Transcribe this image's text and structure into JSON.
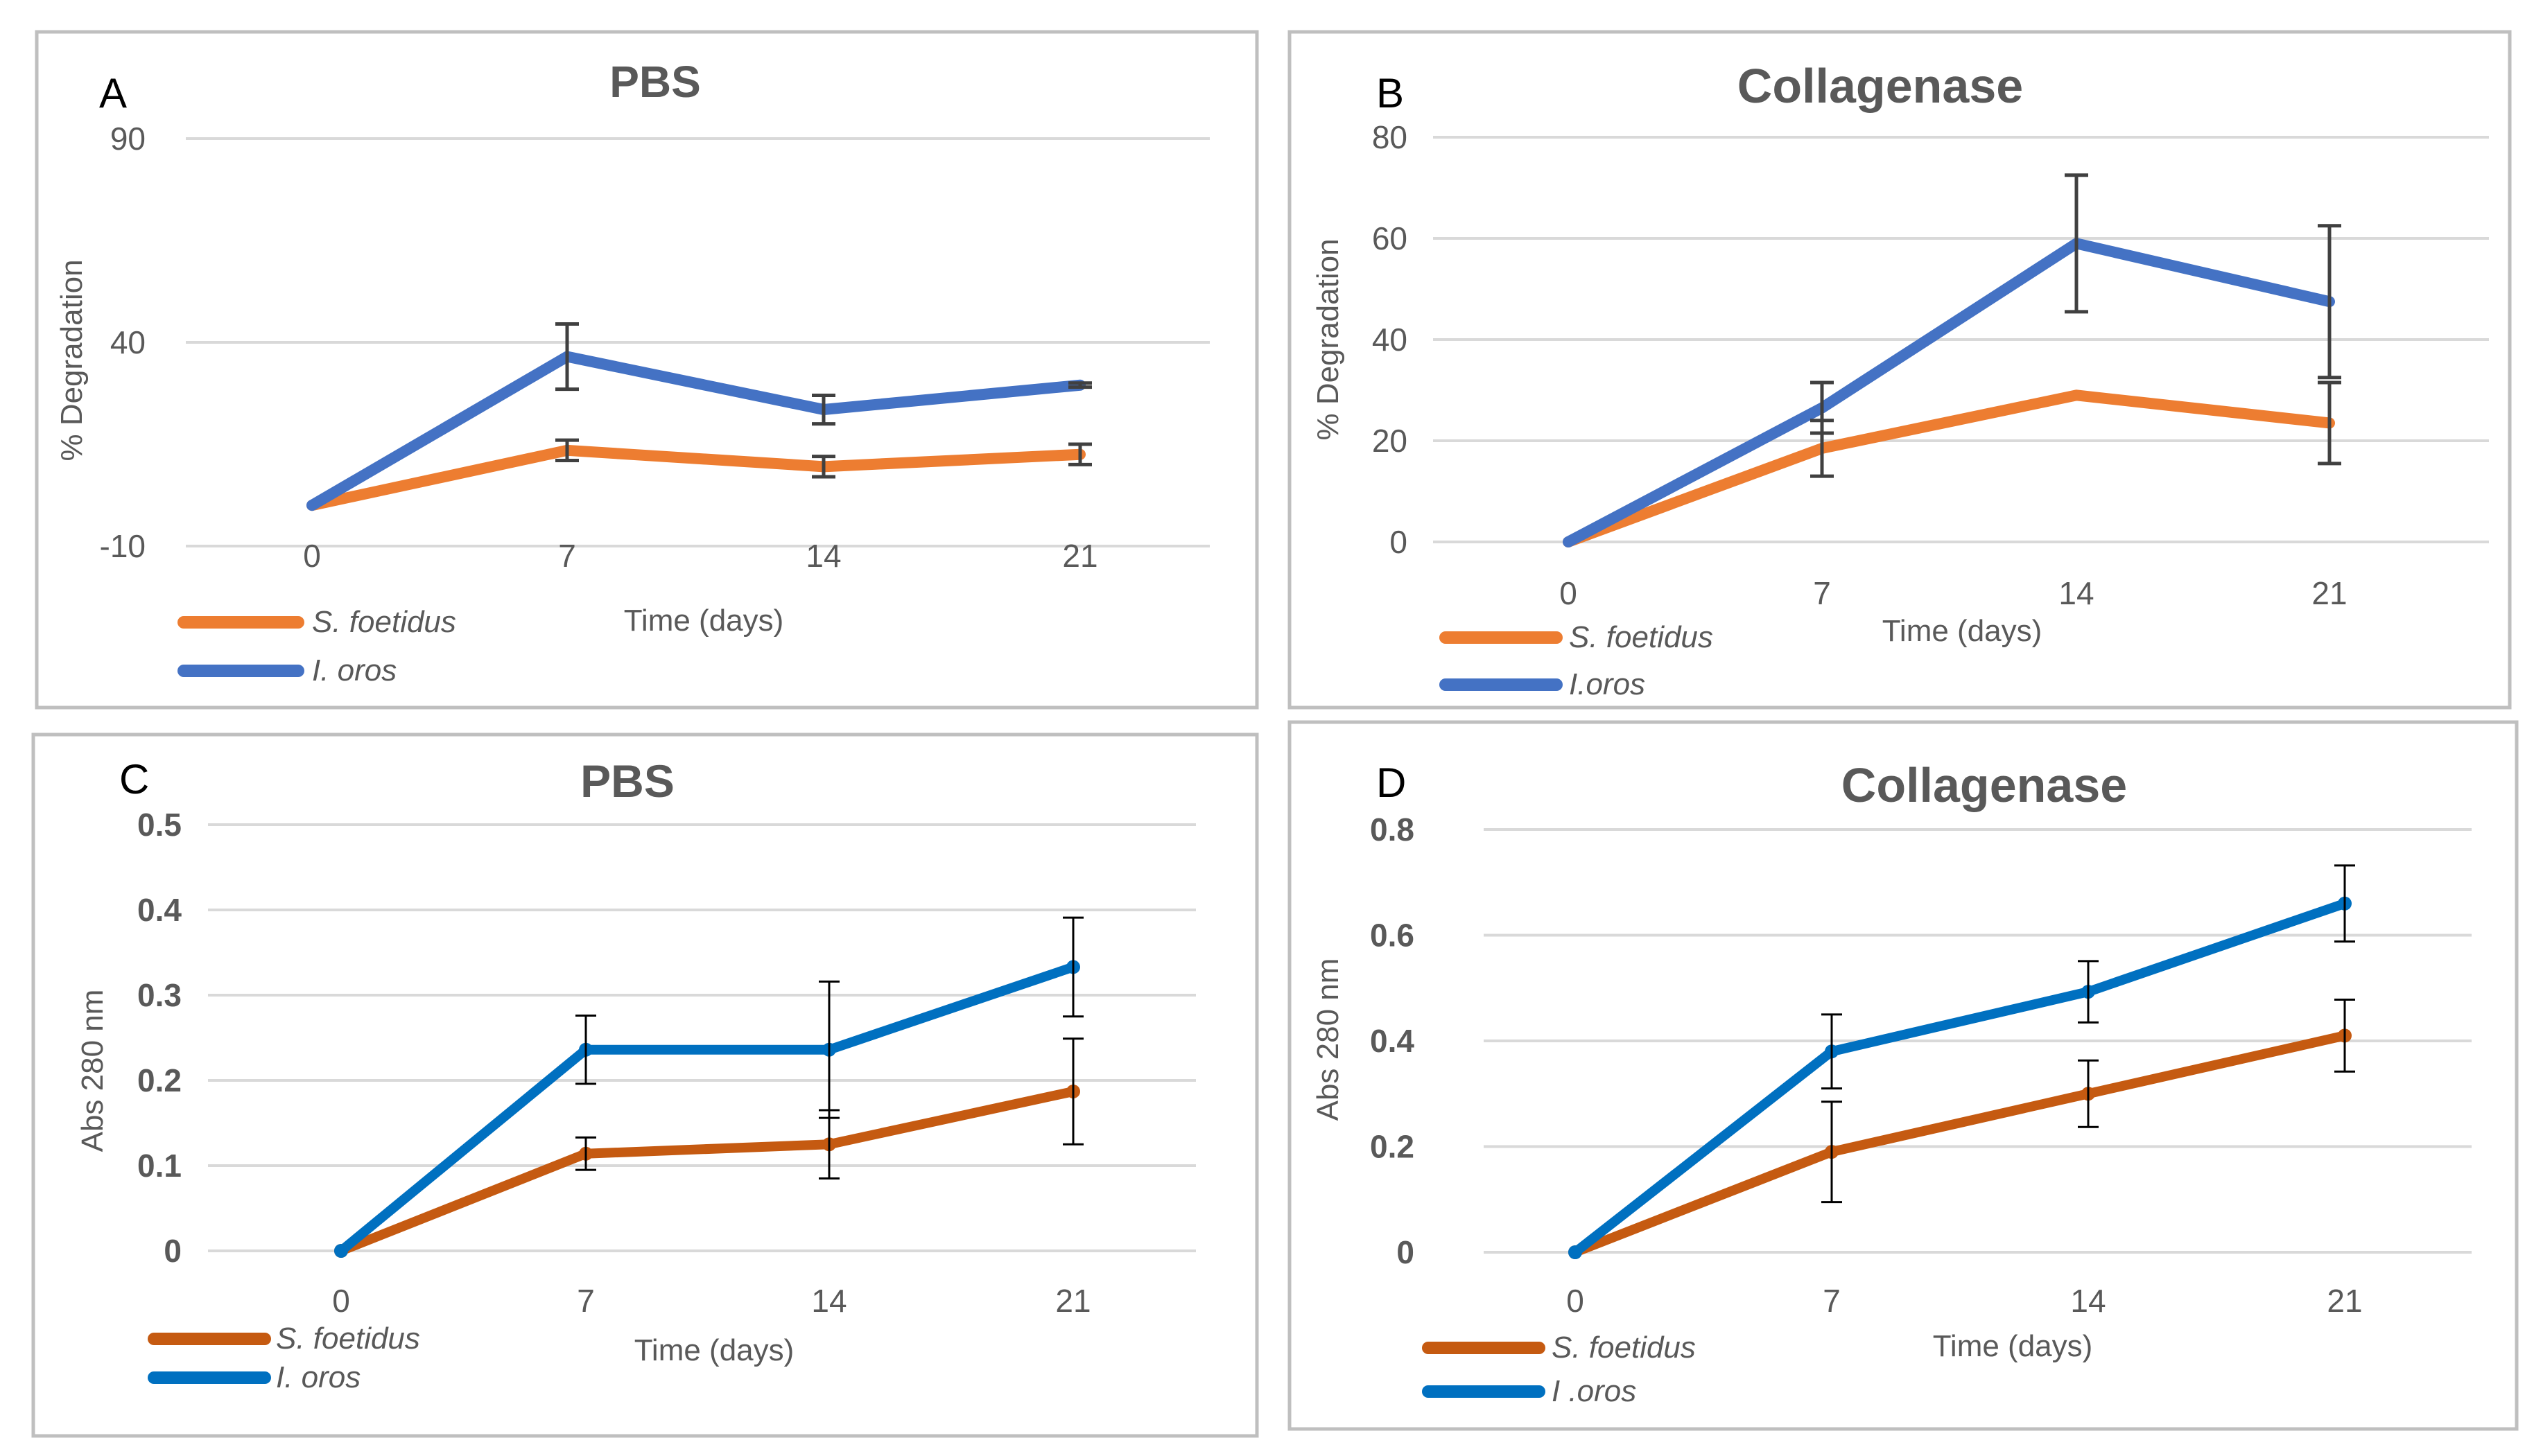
{
  "chart_data": [
    {
      "id": "A",
      "type": "line",
      "panel_label": "A",
      "title": "PBS",
      "xlabel": "Time (days)",
      "ylabel": "% Degradation",
      "categories": [
        "0",
        "7",
        "14",
        "21"
      ],
      "yticks": [
        -10,
        40,
        90
      ],
      "ylim": [
        -10,
        90
      ],
      "grid": true,
      "legend_position": "bottom-left",
      "series": [
        {
          "name": "S. foetidus",
          "color": "#ed7d31",
          "values": [
            0,
            13.5,
            9.5,
            12.5
          ],
          "errors": [
            0,
            2.5,
            2.5,
            2.5
          ]
        },
        {
          "name": "I. oros",
          "color": "#4472c4",
          "values": [
            0,
            36.5,
            23.5,
            29.5
          ],
          "errors": [
            0,
            8,
            3.5,
            0.5
          ]
        }
      ]
    },
    {
      "id": "B",
      "type": "line",
      "panel_label": "B",
      "title": "Collagenase",
      "xlabel": "Time (days)",
      "ylabel": "% Degradation",
      "categories": [
        "0",
        "7",
        "14",
        "21"
      ],
      "yticks": [
        0,
        20,
        40,
        60,
        80
      ],
      "ylim": [
        0,
        80
      ],
      "grid": true,
      "legend_position": "bottom-left",
      "series": [
        {
          "name": "S. foetidus",
          "color": "#ed7d31",
          "values": [
            0,
            18.5,
            29,
            23.5
          ],
          "errors": [
            0,
            5.5,
            0,
            8
          ]
        },
        {
          "name": "I.oros",
          "color": "#4472c4",
          "values": [
            0,
            26.5,
            59,
            47.5
          ],
          "errors": [
            0,
            5,
            13.5,
            15
          ]
        }
      ]
    },
    {
      "id": "C",
      "type": "line",
      "panel_label": "C",
      "title": "PBS",
      "xlabel": "Time (days)",
      "ylabel": "Abs 280 nm",
      "categories": [
        "0",
        "7",
        "14",
        "21"
      ],
      "yticks": [
        "0",
        "0.1",
        "0.2",
        "0.3",
        "0.4",
        "0.5"
      ],
      "ylim": [
        0,
        0.5
      ],
      "grid": true,
      "legend_position": "bottom-left",
      "series": [
        {
          "name": "S. foetidus",
          "color": "#c55a11",
          "values": [
            0,
            0.114,
            0.125,
            0.187
          ],
          "errors": [
            0,
            0.019,
            0.04,
            0.062
          ]
        },
        {
          "name": "I. oros",
          "color": "#0070c0",
          "values": [
            0,
            0.236,
            0.236,
            0.333
          ],
          "errors": [
            0,
            0.04,
            0.08,
            0.058
          ]
        }
      ]
    },
    {
      "id": "D",
      "type": "line",
      "panel_label": "D",
      "title": "Collagenase",
      "xlabel": "Time (days)",
      "ylabel": "Abs 280 nm",
      "categories": [
        "0",
        "7",
        "14",
        "21"
      ],
      "yticks": [
        "0",
        "0.2",
        "0.4",
        "0.6",
        "0.8"
      ],
      "ylim": [
        0,
        0.8
      ],
      "grid": true,
      "legend_position": "bottom-left",
      "series": [
        {
          "name": "S. foetidus",
          "color": "#c55a11",
          "values": [
            0,
            0.19,
            0.3,
            0.41
          ],
          "errors": [
            0,
            0.095,
            0.063,
            0.068
          ]
        },
        {
          "name": "I .oros",
          "color": "#0070c0",
          "values": [
            0,
            0.38,
            0.493,
            0.66
          ],
          "errors": [
            0,
            0.07,
            0.058,
            0.072
          ]
        }
      ]
    }
  ]
}
